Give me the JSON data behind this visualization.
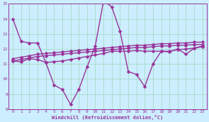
{
  "xlabel": "Windchill (Refroidissement éolien,°C)",
  "bg_color": "#cceeff",
  "grid_color": "#aaddcc",
  "line_color": "#993399",
  "xlim": [
    -0.5,
    23.5
  ],
  "ylim": [
    8,
    15
  ],
  "yticks": [
    8,
    9,
    10,
    11,
    12,
    13,
    14,
    15
  ],
  "xticks": [
    0,
    1,
    2,
    3,
    4,
    5,
    6,
    7,
    8,
    9,
    10,
    11,
    12,
    13,
    14,
    15,
    16,
    17,
    18,
    19,
    20,
    21,
    22,
    23
  ],
  "series": [
    [
      14.0,
      12.5,
      12.4,
      12.4,
      11.1,
      9.6,
      9.3,
      8.3,
      9.3,
      10.8,
      12.2,
      15.2,
      14.8,
      13.2,
      10.5,
      10.3,
      9.5,
      11.0,
      11.85,
      11.8,
      12.0,
      11.65,
      12.05,
      12.2
    ],
    [
      11.2,
      11.15,
      11.35,
      11.3,
      11.1,
      11.15,
      11.2,
      11.3,
      11.4,
      11.5,
      11.6,
      11.7,
      11.85,
      11.85,
      11.85,
      11.9,
      11.85,
      11.85,
      11.85,
      11.85,
      11.95,
      12.0,
      12.05,
      12.15
    ],
    [
      11.2,
      11.3,
      11.4,
      11.5,
      11.55,
      11.6,
      11.65,
      11.7,
      11.75,
      11.8,
      11.85,
      11.9,
      11.95,
      12.0,
      12.05,
      12.1,
      12.1,
      12.15,
      12.2,
      12.2,
      12.25,
      12.25,
      12.3,
      12.3
    ],
    [
      11.35,
      11.45,
      11.55,
      11.65,
      11.7,
      11.75,
      11.8,
      11.85,
      11.9,
      11.95,
      12.0,
      12.05,
      12.1,
      12.15,
      12.2,
      12.25,
      12.25,
      12.3,
      12.35,
      12.35,
      12.4,
      12.4,
      12.45,
      12.45
    ]
  ],
  "marker": "D",
  "marker_size": 2.5,
  "linewidth": 1.0
}
